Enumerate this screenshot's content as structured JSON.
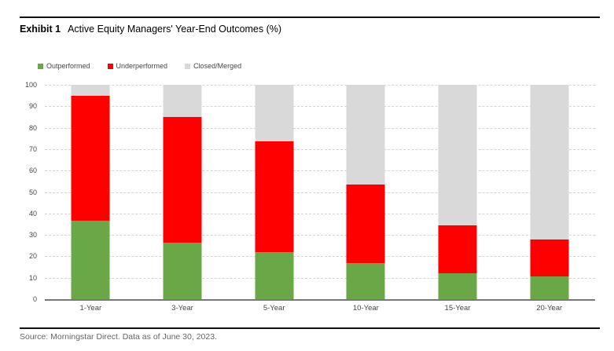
{
  "exhibit": {
    "label": "Exhibit 1",
    "title": "Active Equity Managers' Year-End Outcomes (%)"
  },
  "chart_data": {
    "type": "bar",
    "stacked": true,
    "title": "Active Equity Managers' Year-End Outcomes (%)",
    "xlabel": "",
    "ylabel": "",
    "categories": [
      "1-Year",
      "3-Year",
      "5-Year",
      "10-Year",
      "15-Year",
      "20-Year"
    ],
    "series": [
      {
        "name": "Outperformed",
        "color": "#6aa746",
        "values": [
          36.5,
          26.5,
          22,
          17,
          12,
          10.5
        ]
      },
      {
        "name": "Underperformed",
        "color": "#fe0000",
        "values": [
          58.5,
          58.5,
          51.5,
          36.5,
          22.5,
          17.5
        ]
      },
      {
        "name": "Closed/Merged",
        "color": "#d9d9d9",
        "values": [
          5,
          15,
          26.5,
          46.5,
          65.5,
          72
        ]
      }
    ],
    "ylim": [
      0,
      100
    ],
    "yticks": [
      0,
      10,
      20,
      30,
      40,
      50,
      60,
      70,
      80,
      90,
      100
    ],
    "grid": "horizontal-dashed",
    "legend_position": "top-left",
    "axis_color": "#77787a",
    "gridline_color": "#d5d5d5"
  },
  "source": "Source: Morningstar Direct. Data as of June 30, 2023."
}
